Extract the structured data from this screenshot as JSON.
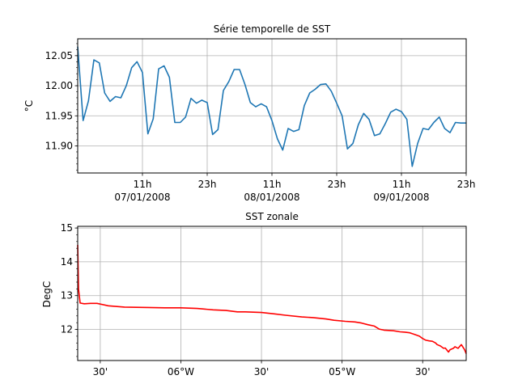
{
  "chart_data": [
    {
      "type": "line",
      "title": "Série temporelle de SST",
      "xlabel": "",
      "ylabel": "°C",
      "x_unit": "hours since 2008-01-06 23h",
      "xlim": [
        0,
        72
      ],
      "ylim": [
        11.855,
        12.078
      ],
      "y_ticks": [
        11.9,
        11.95,
        12.0,
        12.05
      ],
      "y_tick_labels": [
        "11.90",
        "11.95",
        "12.00",
        "12.05"
      ],
      "x_ticks": [
        {
          "x": 12,
          "label": "11h",
          "sublabel": "07/01/2008"
        },
        {
          "x": 24,
          "label": "23h",
          "sublabel": ""
        },
        {
          "x": 36,
          "label": "11h",
          "sublabel": "08/01/2008"
        },
        {
          "x": 48,
          "label": "23h",
          "sublabel": ""
        },
        {
          "x": 60,
          "label": "11h",
          "sublabel": "09/01/2008"
        },
        {
          "x": 72,
          "label": "23h",
          "sublabel": ""
        }
      ],
      "grid": true,
      "color": "#1f77b4",
      "series": [
        {
          "x": [
            0,
            1,
            2,
            3,
            4,
            5,
            6,
            7,
            8,
            9,
            10,
            11,
            12,
            13,
            14,
            15,
            16,
            17,
            18,
            19,
            20,
            21,
            22,
            23,
            24,
            25,
            26,
            27,
            28,
            29,
            30,
            31,
            32,
            33,
            34,
            35,
            36,
            37,
            38,
            39,
            40,
            41,
            42,
            43,
            44,
            45,
            46,
            47,
            48,
            49,
            50,
            51,
            52,
            53,
            54,
            55,
            56,
            57,
            58,
            59,
            60,
            61,
            62,
            63,
            64,
            65,
            66,
            67,
            68,
            69,
            70,
            71,
            72
          ],
          "values": [
            12.065,
            11.942,
            11.975,
            12.043,
            12.038,
            11.988,
            11.974,
            11.982,
            11.98,
            12.0,
            12.03,
            12.04,
            12.022,
            11.92,
            11.945,
            12.028,
            12.033,
            12.014,
            11.939,
            11.939,
            11.948,
            11.979,
            11.971,
            11.976,
            11.972,
            11.919,
            11.927,
            11.992,
            12.007,
            12.027,
            12.027,
            12.002,
            11.972,
            11.965,
            11.97,
            11.965,
            11.942,
            11.912,
            11.893,
            11.929,
            11.924,
            11.927,
            11.967,
            11.988,
            11.994,
            12.002,
            12.003,
            11.991,
            11.971,
            11.95,
            11.895,
            11.904,
            11.935,
            11.954,
            11.944,
            11.917,
            11.92,
            11.937,
            11.956,
            11.961,
            11.957,
            11.944,
            11.866,
            11.904,
            11.929,
            11.927,
            11.939,
            11.948,
            11.929,
            11.922,
            11.939,
            11.938,
            11.938
          ]
        }
      ]
    },
    {
      "type": "line",
      "title": "SST zonale",
      "xlabel": "",
      "ylabel": "DegC",
      "x_unit": "longitude degrees east",
      "xlim": [
        -6.64,
        -4.23
      ],
      "ylim": [
        11.08,
        15.05
      ],
      "y_ticks": [
        12,
        13,
        14,
        15
      ],
      "y_tick_labels": [
        "12",
        "13",
        "14",
        "15"
      ],
      "x_ticks": [
        {
          "x": -6.5,
          "label": "30'"
        },
        {
          "x": -6.0,
          "label": "06°W"
        },
        {
          "x": -5.5,
          "label": "30'"
        },
        {
          "x": -5.0,
          "label": "05°W"
        },
        {
          "x": -4.5,
          "label": "30'"
        }
      ],
      "grid": true,
      "color": "#ff0000",
      "series": [
        {
          "x": [
            -6.64,
            -6.635,
            -6.625,
            -6.6,
            -6.56,
            -6.52,
            -6.45,
            -6.35,
            -6.2,
            -6.1,
            -6.0,
            -5.9,
            -5.8,
            -5.72,
            -5.65,
            -5.6,
            -5.5,
            -5.42,
            -5.35,
            -5.25,
            -5.18,
            -5.1,
            -5.05,
            -4.98,
            -4.92,
            -4.88,
            -4.84,
            -4.8,
            -4.77,
            -4.74,
            -4.71,
            -4.68,
            -4.64,
            -4.61,
            -4.58,
            -4.55,
            -4.52,
            -4.5,
            -4.48,
            -4.46,
            -4.44,
            -4.42,
            -4.41,
            -4.39,
            -4.37,
            -4.36,
            -4.34,
            -4.33,
            -4.31,
            -4.3,
            -4.28,
            -4.26,
            -4.24,
            -4.23
          ],
          "values": [
            14.5,
            13.2,
            12.78,
            12.76,
            12.77,
            12.77,
            12.7,
            12.66,
            12.65,
            12.64,
            12.64,
            12.62,
            12.58,
            12.56,
            12.52,
            12.52,
            12.5,
            12.46,
            12.42,
            12.37,
            12.35,
            12.31,
            12.27,
            12.24,
            12.22,
            12.19,
            12.14,
            12.1,
            12.01,
            11.98,
            11.97,
            11.96,
            11.93,
            11.92,
            11.9,
            11.85,
            11.8,
            11.73,
            11.68,
            11.66,
            11.65,
            11.6,
            11.55,
            11.51,
            11.44,
            11.45,
            11.33,
            11.4,
            11.44,
            11.49,
            11.44,
            11.55,
            11.4,
            11.28
          ]
        }
      ]
    }
  ]
}
